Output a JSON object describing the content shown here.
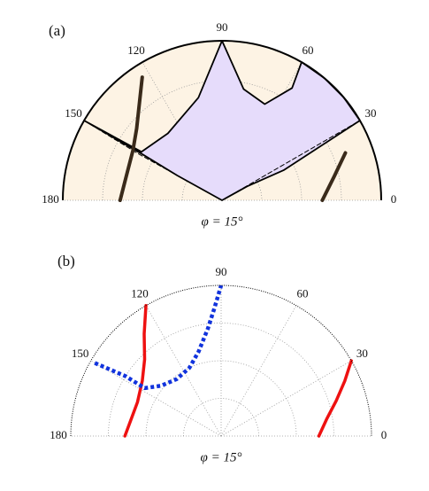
{
  "chart_data": [
    {
      "type": "polar",
      "label": "(a)",
      "xlabel": "φ = 15°",
      "thetaticks": [
        0,
        30,
        60,
        90,
        120,
        150,
        180
      ],
      "rlim": [
        0,
        1
      ],
      "rticks": [
        0.25,
        0.5,
        0.75
      ],
      "background": "#fdf3e4",
      "grid": true,
      "series": [
        {
          "style": "fill",
          "color": "#e6dcfb",
          "edge": "#000000",
          "theta": [
            90,
            79,
            66,
            58,
            60,
            50,
            40,
            30,
            26,
            29,
            90,
            151,
            150,
            150,
            149,
            129,
            103
          ],
          "r": [
            1,
            0.71,
            0.66,
            0.83,
            1,
            1,
            1,
            1,
            0.43,
            0.18,
            0,
            0.32,
            0.58,
            1,
            0.59,
            0.54,
            0.66
          ]
        },
        {
          "style": "dashed",
          "color": "#000000",
          "theta": [
            150,
            151,
            90,
            30
          ],
          "r": [
            1,
            0.6,
            0,
            1
          ]
        },
        {
          "style": "streak",
          "color": "#3a2a1a",
          "theta": [
            123,
            140,
            151,
            165,
            180
          ],
          "r": [
            0.92,
            0.7,
            0.64,
            0.62,
            0.64
          ]
        },
        {
          "style": "streak",
          "color": "#3a2a1a",
          "theta": [
            21,
            12,
            0
          ],
          "r": [
            0.83,
            0.72,
            0.63
          ]
        }
      ]
    },
    {
      "type": "polar",
      "label": "(b)",
      "xlabel": "φ = 15°",
      "thetaticks": [
        0,
        30,
        60,
        90,
        120,
        150,
        180
      ],
      "rlim": [
        0,
        1
      ],
      "rticks": [
        0.25,
        0.5,
        0.75
      ],
      "background": "#ffffff",
      "grid": true,
      "series": [
        {
          "style": "solid",
          "color": "#ee1111",
          "theta": [
            120,
            127,
            135,
            145,
            158,
            170,
            180
          ],
          "r": [
            1,
            0.85,
            0.72,
            0.64,
            0.6,
            0.61,
            0.64
          ]
        },
        {
          "style": "solid",
          "color": "#ee1111",
          "theta": [
            30,
            24,
            17,
            9,
            0
          ],
          "r": [
            1,
            0.9,
            0.8,
            0.71,
            0.65
          ]
        },
        {
          "style": "dotted",
          "color": "#1133dd",
          "theta": [
            150,
            148,
            148,
            140,
            128,
            115,
            105,
            97,
            93,
            90
          ],
          "r": [
            0.97,
            0.75,
            0.6,
            0.52,
            0.48,
            0.5,
            0.58,
            0.72,
            0.85,
            1
          ]
        }
      ]
    }
  ]
}
